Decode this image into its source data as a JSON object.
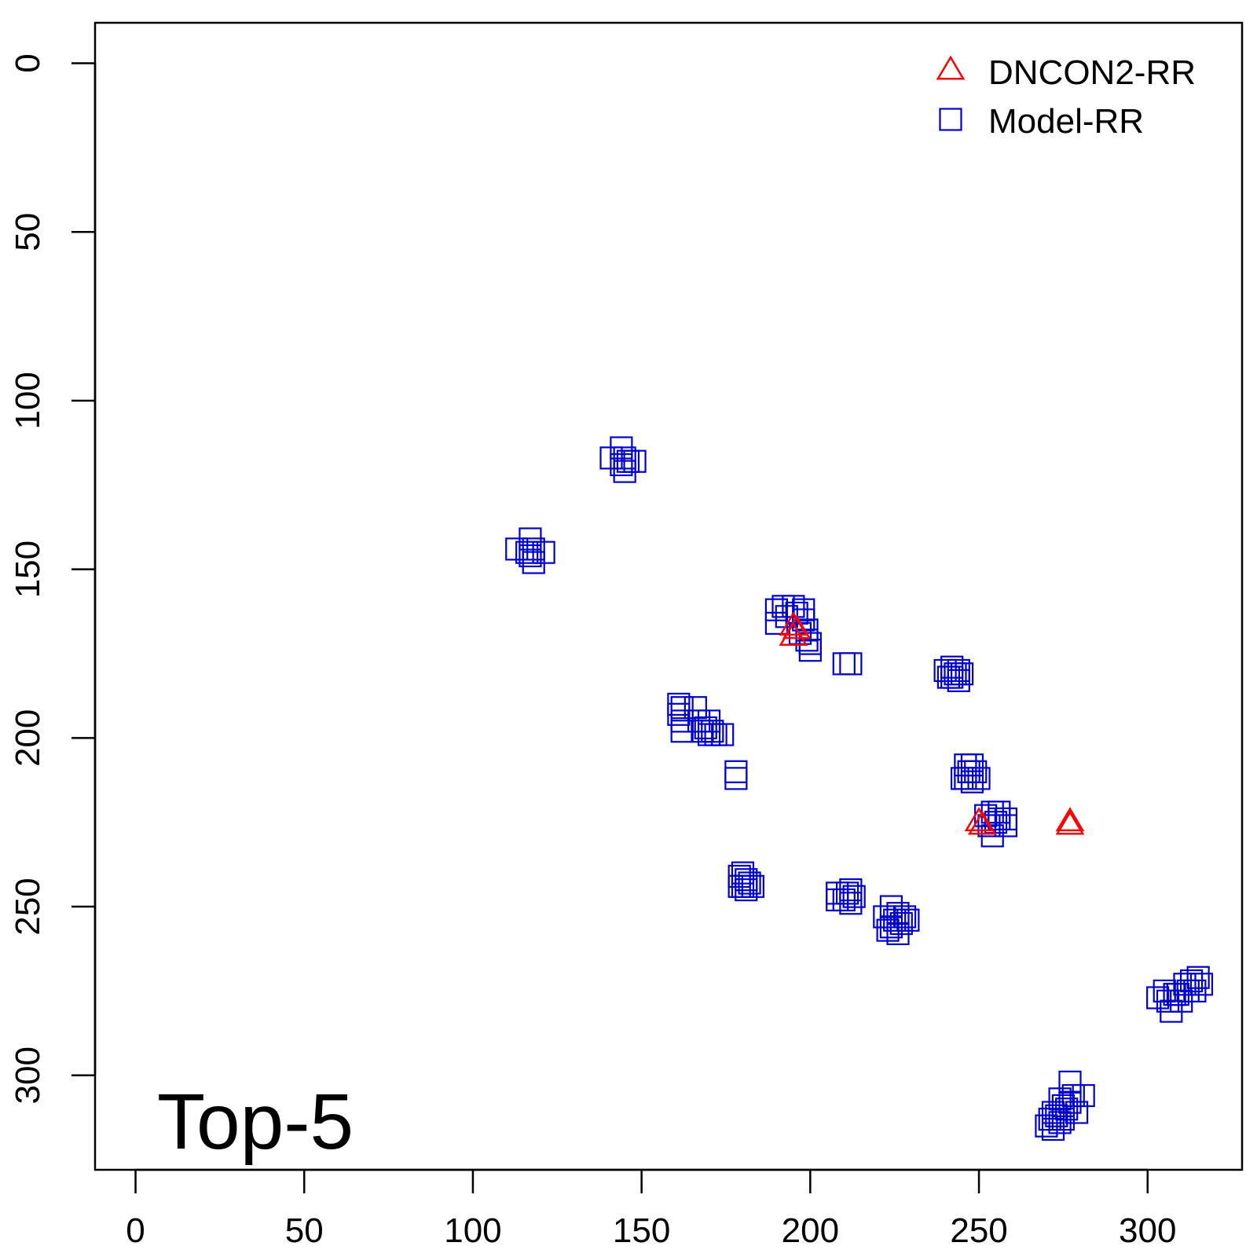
{
  "chart_data": {
    "type": "scatter",
    "title": "",
    "xlabel": "",
    "ylabel": "",
    "xlim": [
      -12,
      328
    ],
    "ylim": [
      -12,
      328
    ],
    "y_reversed": true,
    "x_ticks": [
      0,
      50,
      100,
      150,
      200,
      250,
      300
    ],
    "y_ticks": [
      0,
      50,
      100,
      150,
      200,
      250,
      300
    ],
    "x_tick_labels": [
      "0",
      "50",
      "100",
      "150",
      "200",
      "250",
      "300"
    ],
    "y_tick_labels": [
      "0",
      "50",
      "100",
      "150",
      "200",
      "250",
      "300"
    ],
    "annotation": "Top-5",
    "legend": {
      "position": "top-right"
    },
    "grid": false,
    "series": [
      {
        "name": "DNCON2-RR",
        "marker": "triangle",
        "color": "#ff0000",
        "points": [
          [
            195,
            167
          ],
          [
            195,
            170
          ],
          [
            196,
            168
          ],
          [
            250,
            225
          ],
          [
            251,
            226
          ],
          [
            277,
            225
          ],
          [
            277,
            226
          ]
        ]
      },
      {
        "name": "Model-RR",
        "marker": "square",
        "color": "#0000cc",
        "points": [
          [
            141,
            117
          ],
          [
            144,
            114
          ],
          [
            145,
            117
          ],
          [
            146,
            118
          ],
          [
            148,
            118
          ],
          [
            145,
            121
          ],
          [
            144,
            119
          ],
          [
            113,
            144
          ],
          [
            117,
            141
          ],
          [
            118,
            144
          ],
          [
            117,
            146
          ],
          [
            118,
            148
          ],
          [
            121,
            145
          ],
          [
            116,
            145
          ],
          [
            190,
            162
          ],
          [
            190,
            166
          ],
          [
            192,
            161
          ],
          [
            195,
            161
          ],
          [
            196,
            163
          ],
          [
            198,
            162
          ],
          [
            198,
            165
          ],
          [
            199,
            168
          ],
          [
            199,
            171
          ],
          [
            200,
            172
          ],
          [
            200,
            174
          ],
          [
            197,
            169
          ],
          [
            193,
            164
          ],
          [
            210,
            178
          ],
          [
            212,
            178
          ],
          [
            240,
            180
          ],
          [
            241,
            182
          ],
          [
            242,
            179
          ],
          [
            243,
            181
          ],
          [
            244,
            180
          ],
          [
            244,
            183
          ],
          [
            242,
            182
          ],
          [
            245,
            181
          ],
          [
            161,
            190
          ],
          [
            161,
            193
          ],
          [
            162,
            191
          ],
          [
            162,
            195
          ],
          [
            162,
            198
          ],
          [
            166,
            191
          ],
          [
            167,
            195
          ],
          [
            169,
            197
          ],
          [
            170,
            195
          ],
          [
            171,
            198
          ],
          [
            172,
            199
          ],
          [
            174,
            199
          ],
          [
            170,
            199
          ],
          [
            168,
            198
          ],
          [
            178,
            210
          ],
          [
            178,
            212
          ],
          [
            246,
            208
          ],
          [
            247,
            210
          ],
          [
            248,
            208
          ],
          [
            249,
            210
          ],
          [
            246,
            212
          ],
          [
            248,
            213
          ],
          [
            250,
            212
          ],
          [
            245,
            212
          ],
          [
            252,
            223
          ],
          [
            254,
            222
          ],
          [
            256,
            222
          ],
          [
            258,
            224
          ],
          [
            258,
            226
          ],
          [
            255,
            225
          ],
          [
            253,
            226
          ],
          [
            254,
            229
          ],
          [
            256,
            224
          ],
          [
            179,
            241
          ],
          [
            181,
            242
          ],
          [
            180,
            244
          ],
          [
            182,
            243
          ],
          [
            183,
            244
          ],
          [
            180,
            240
          ],
          [
            181,
            245
          ],
          [
            179,
            244
          ],
          [
            208,
            246
          ],
          [
            208,
            248
          ],
          [
            211,
            246
          ],
          [
            212,
            245
          ],
          [
            212,
            249
          ],
          [
            210,
            248
          ],
          [
            213,
            247
          ],
          [
            222,
            253
          ],
          [
            223,
            257
          ],
          [
            224,
            250
          ],
          [
            225,
            254
          ],
          [
            226,
            252
          ],
          [
            227,
            255
          ],
          [
            228,
            253
          ],
          [
            229,
            254
          ],
          [
            226,
            258
          ],
          [
            224,
            256
          ],
          [
            303,
            277
          ],
          [
            305,
            275
          ],
          [
            306,
            278
          ],
          [
            307,
            281
          ],
          [
            308,
            276
          ],
          [
            310,
            278
          ],
          [
            311,
            273
          ],
          [
            312,
            275
          ],
          [
            313,
            272
          ],
          [
            315,
            271
          ],
          [
            316,
            273
          ],
          [
            314,
            275
          ],
          [
            309,
            276
          ],
          [
            270,
            315
          ],
          [
            271,
            313
          ],
          [
            272,
            316
          ],
          [
            273,
            312
          ],
          [
            274,
            314
          ],
          [
            275,
            313
          ],
          [
            276,
            310
          ],
          [
            274,
            307
          ],
          [
            275,
            309
          ],
          [
            277,
            302
          ],
          [
            278,
            306
          ],
          [
            277,
            308
          ],
          [
            279,
            311
          ],
          [
            281,
            306
          ],
          [
            272,
            311
          ]
        ]
      }
    ]
  }
}
